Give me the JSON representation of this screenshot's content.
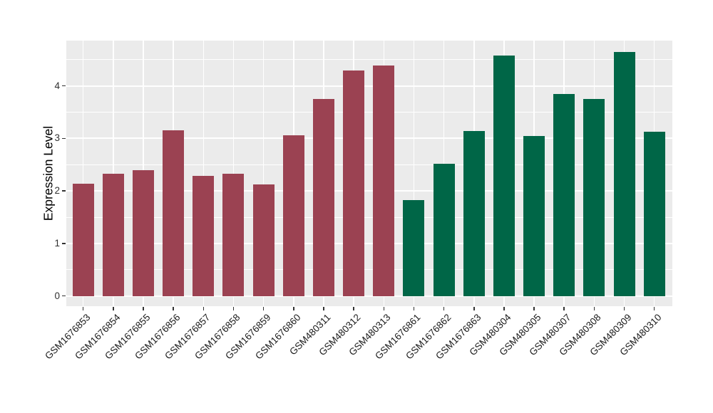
{
  "chart_data": {
    "type": "bar",
    "title": "",
    "ylabel": "Expression Level",
    "xlabel": "",
    "yticks": [
      0,
      1,
      2,
      3,
      4
    ],
    "ylim": [
      -0.17,
      4.87
    ],
    "grid": true,
    "legend": "none",
    "panel_bg": "#EBEBEB",
    "grid_color": "#FFFFFF",
    "tick_color": "#333333",
    "categories": [
      "GSM1676853",
      "GSM1676854",
      "GSM1676855",
      "GSM1676856",
      "GSM1676857",
      "GSM1676858",
      "GSM1676859",
      "GSM1676860",
      "GSM480311",
      "GSM480312",
      "GSM480313",
      "GSM1676861",
      "GSM1676862",
      "GSM1676863",
      "GSM480304",
      "GSM480305",
      "GSM480307",
      "GSM480308",
      "GSM480309",
      "GSM480310"
    ],
    "values": [
      2.14,
      2.32,
      2.4,
      3.15,
      2.29,
      2.32,
      2.13,
      3.06,
      3.75,
      4.29,
      4.39,
      1.83,
      2.52,
      3.14,
      4.57,
      3.04,
      3.85,
      3.75,
      4.64,
      3.12
    ],
    "bar_colors": [
      "#9B4252",
      "#9B4252",
      "#9B4252",
      "#9B4252",
      "#9B4252",
      "#9B4252",
      "#9B4252",
      "#9B4252",
      "#9B4252",
      "#9B4252",
      "#9B4252",
      "#006647",
      "#006647",
      "#006647",
      "#006647",
      "#006647",
      "#006647",
      "#006647",
      "#006647",
      "#006647"
    ],
    "group_palette": {
      "group_1": "#9B4252",
      "group_2": "#006647"
    }
  }
}
